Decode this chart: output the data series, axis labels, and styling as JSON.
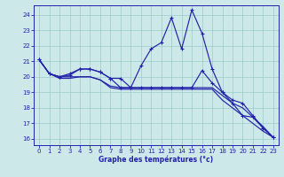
{
  "background_color": "#cce8e8",
  "grid_color": "#99cccc",
  "line_color": "#2222aa",
  "xlabel": "Graphe des températures (°c)",
  "xlim": [
    -0.5,
    23.5
  ],
  "ylim": [
    15.6,
    24.6
  ],
  "x_ticks": [
    0,
    1,
    2,
    3,
    4,
    5,
    6,
    7,
    8,
    9,
    10,
    11,
    12,
    13,
    14,
    15,
    16,
    17,
    18,
    19,
    20,
    21,
    22,
    23
  ],
  "y_ticks": [
    16,
    17,
    18,
    19,
    20,
    21,
    22,
    23,
    24
  ],
  "curve_main_x": [
    0,
    1,
    2,
    3,
    4,
    5,
    6,
    7,
    8,
    9,
    10,
    11,
    12,
    13,
    14,
    15,
    16,
    17,
    18,
    19,
    20,
    21,
    22,
    23
  ],
  "curve_main_y": [
    21.1,
    20.2,
    20.0,
    20.1,
    20.5,
    20.5,
    20.3,
    19.9,
    19.9,
    19.3,
    20.7,
    21.8,
    22.2,
    23.8,
    21.8,
    24.3,
    22.8,
    20.5,
    19.0,
    18.3,
    17.5,
    17.4,
    16.7,
    16.1
  ],
  "curve_a_x": [
    0,
    1,
    2,
    3,
    4,
    5,
    6,
    7,
    8,
    9,
    10,
    11,
    12,
    13,
    14,
    15,
    16,
    17,
    18,
    19,
    20,
    21,
    22,
    23
  ],
  "curve_a_y": [
    21.1,
    20.2,
    20.0,
    20.2,
    20.5,
    20.5,
    20.3,
    19.9,
    19.3,
    19.3,
    19.3,
    19.3,
    19.3,
    19.3,
    19.3,
    19.3,
    20.4,
    19.6,
    19.0,
    18.5,
    18.3,
    17.5,
    16.7,
    16.1
  ],
  "curve_b_x": [
    0,
    1,
    2,
    3,
    4,
    5,
    6,
    7,
    8,
    9,
    10,
    11,
    12,
    13,
    14,
    15,
    16,
    17,
    18,
    19,
    20,
    21,
    22,
    23
  ],
  "curve_b_y": [
    21.1,
    20.2,
    20.0,
    20.0,
    20.0,
    20.0,
    19.8,
    19.4,
    19.3,
    19.3,
    19.3,
    19.3,
    19.3,
    19.3,
    19.3,
    19.3,
    19.3,
    19.3,
    18.8,
    18.3,
    18.0,
    17.4,
    16.8,
    16.1
  ],
  "curve_c_x": [
    0,
    1,
    2,
    3,
    4,
    5,
    6,
    7,
    8,
    9,
    10,
    11,
    12,
    13,
    14,
    15,
    16,
    17,
    18,
    19,
    20,
    21,
    22,
    23
  ],
  "curve_c_y": [
    21.1,
    20.2,
    19.9,
    19.9,
    20.0,
    20.0,
    19.8,
    19.3,
    19.2,
    19.2,
    19.2,
    19.2,
    19.2,
    19.2,
    19.2,
    19.2,
    19.2,
    19.2,
    18.5,
    18.0,
    17.5,
    17.0,
    16.5,
    16.1
  ]
}
